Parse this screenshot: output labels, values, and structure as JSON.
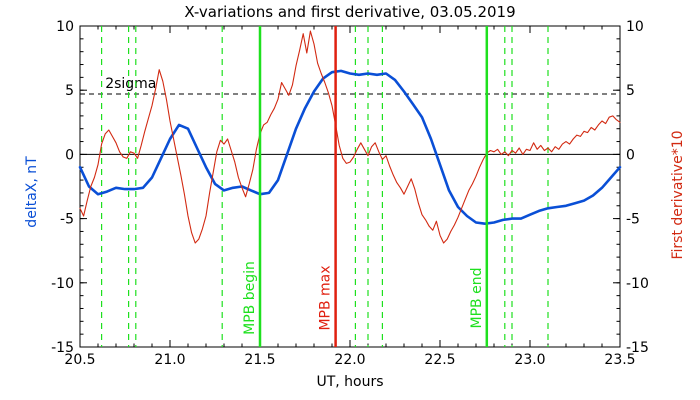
{
  "chart_data": {
    "type": "line",
    "title": "X-variations and first derivative, 03.05.2019",
    "xlabel": "UT, hours",
    "ylabel_left": "deltaX, nT",
    "ylabel_right": "First derivative*10",
    "xlim": [
      20.5,
      23.5
    ],
    "ylim": [
      -15,
      10
    ],
    "x_ticks": [
      "20.5",
      "21.0",
      "21.5",
      "22.0",
      "22.5",
      "23.0",
      "23.5"
    ],
    "y_ticks": [
      "10",
      "5",
      "0",
      "-5",
      "-10",
      "-15"
    ],
    "grid": false,
    "colors": {
      "deltaX": "#0a4fd6",
      "derivative": "#d22a12",
      "mpb": "#1ee01e",
      "mpb_max": "#e02010",
      "frame": "#000000"
    },
    "sigma_label": "2sigma",
    "sigma_level": 4.7,
    "zero_level": 0,
    "markers": [
      {
        "x": 21.5,
        "label": "MPB begin",
        "color": "#1ee01e"
      },
      {
        "x": 21.92,
        "label": "MPB max",
        "color": "#e02010"
      },
      {
        "x": 22.76,
        "label": "MPB end",
        "color": "#1ee01e"
      }
    ],
    "dashed_vlines": [
      20.62,
      20.77,
      20.81,
      21.29,
      22.03,
      22.1,
      22.18,
      22.86,
      22.9,
      23.1
    ],
    "series": [
      {
        "key": "deltaX",
        "axis": "left",
        "color": "#0a4fd6",
        "x": [
          20.5,
          20.55,
          20.6,
          20.65,
          20.7,
          20.75,
          20.8,
          20.85,
          20.9,
          20.95,
          21.0,
          21.05,
          21.1,
          21.15,
          21.2,
          21.25,
          21.3,
          21.35,
          21.4,
          21.45,
          21.5,
          21.55,
          21.6,
          21.65,
          21.7,
          21.75,
          21.8,
          21.85,
          21.9,
          21.95,
          22.0,
          22.05,
          22.1,
          22.15,
          22.2,
          22.25,
          22.3,
          22.35,
          22.4,
          22.45,
          22.5,
          22.55,
          22.6,
          22.65,
          22.7,
          22.75,
          22.8,
          22.85,
          22.9,
          22.95,
          23.0,
          23.05,
          23.1,
          23.15,
          23.2,
          23.25,
          23.3,
          23.35,
          23.4,
          23.45,
          23.5
        ],
        "y": [
          -1.0,
          -2.5,
          -3.1,
          -2.9,
          -2.6,
          -2.7,
          -2.7,
          -2.6,
          -1.8,
          -0.3,
          1.2,
          2.3,
          2.0,
          0.5,
          -1.0,
          -2.3,
          -2.8,
          -2.6,
          -2.5,
          -2.8,
          -3.1,
          -3.0,
          -2.0,
          0.0,
          2.0,
          3.6,
          4.9,
          5.9,
          6.4,
          6.5,
          6.3,
          6.2,
          6.3,
          6.2,
          6.3,
          5.8,
          4.9,
          3.9,
          2.9,
          1.2,
          -0.8,
          -2.8,
          -4.1,
          -4.8,
          -5.3,
          -5.4,
          -5.3,
          -5.1,
          -5.0,
          -5.0,
          -4.7,
          -4.4,
          -4.2,
          -4.1,
          -4.0,
          -3.8,
          -3.6,
          -3.2,
          -2.6,
          -1.8,
          -1.0
        ]
      },
      {
        "key": "derivative",
        "axis": "right",
        "color": "#d22a12",
        "x": [
          20.5,
          20.52,
          20.54,
          20.56,
          20.58,
          20.6,
          20.62,
          20.64,
          20.66,
          20.68,
          20.7,
          20.72,
          20.74,
          20.76,
          20.78,
          20.8,
          20.82,
          20.84,
          20.86,
          20.88,
          20.9,
          20.92,
          20.94,
          20.96,
          20.98,
          21.0,
          21.02,
          21.04,
          21.06,
          21.08,
          21.1,
          21.12,
          21.14,
          21.16,
          21.18,
          21.2,
          21.22,
          21.24,
          21.26,
          21.28,
          21.3,
          21.32,
          21.34,
          21.36,
          21.38,
          21.4,
          21.42,
          21.44,
          21.46,
          21.48,
          21.5,
          21.52,
          21.54,
          21.56,
          21.58,
          21.6,
          21.62,
          21.64,
          21.66,
          21.68,
          21.7,
          21.72,
          21.74,
          21.76,
          21.78,
          21.8,
          21.82,
          21.84,
          21.86,
          21.88,
          21.9,
          21.92,
          21.94,
          21.96,
          21.98,
          22.0,
          22.02,
          22.04,
          22.06,
          22.08,
          22.1,
          22.12,
          22.14,
          22.16,
          22.18,
          22.2,
          22.22,
          22.24,
          22.26,
          22.28,
          22.3,
          22.32,
          22.34,
          22.36,
          22.38,
          22.4,
          22.42,
          22.44,
          22.46,
          22.48,
          22.5,
          22.52,
          22.54,
          22.56,
          22.58,
          22.6,
          22.62,
          22.64,
          22.66,
          22.68,
          22.7,
          22.72,
          22.74,
          22.76,
          22.78,
          22.8,
          22.82,
          22.84,
          22.86,
          22.88,
          22.9,
          22.92,
          22.94,
          22.96,
          22.98,
          23.0,
          23.02,
          23.04,
          23.06,
          23.08,
          23.1,
          23.12,
          23.14,
          23.16,
          23.18,
          23.2,
          23.22,
          23.24,
          23.26,
          23.28,
          23.3,
          23.32,
          23.34,
          23.36,
          23.38,
          23.4,
          23.42,
          23.44,
          23.46,
          23.48,
          23.5
        ],
        "y": [
          -4.2,
          -4.8,
          -3.6,
          -2.5,
          -1.8,
          -0.8,
          0.8,
          1.6,
          1.9,
          1.4,
          0.9,
          0.2,
          -0.2,
          -0.3,
          0.2,
          0.1,
          -0.3,
          0.7,
          1.8,
          2.8,
          3.8,
          5.1,
          6.6,
          5.7,
          4.3,
          2.6,
          1.2,
          -0.2,
          -1.6,
          -3.1,
          -4.8,
          -6.1,
          -6.9,
          -6.6,
          -5.8,
          -4.8,
          -3.0,
          -1.4,
          0.2,
          1.1,
          0.8,
          1.2,
          0.3,
          -0.6,
          -1.8,
          -2.6,
          -3.3,
          -2.3,
          -1.2,
          0.4,
          1.6,
          2.3,
          2.5,
          3.1,
          3.6,
          4.3,
          5.6,
          5.1,
          4.6,
          5.4,
          6.9,
          8.1,
          9.4,
          7.9,
          9.6,
          8.6,
          7.1,
          6.3,
          5.6,
          4.8,
          3.8,
          2.3,
          0.7,
          -0.3,
          -0.7,
          -0.6,
          -0.2,
          0.4,
          0.9,
          0.4,
          -0.1,
          0.6,
          0.9,
          0.2,
          -0.4,
          -0.1,
          -0.9,
          -1.6,
          -2.2,
          -2.6,
          -3.1,
          -2.5,
          -1.9,
          -2.7,
          -3.8,
          -4.7,
          -5.1,
          -5.6,
          -5.9,
          -5.2,
          -6.3,
          -6.9,
          -6.6,
          -6.0,
          -5.5,
          -4.9,
          -4.2,
          -3.5,
          -2.8,
          -2.3,
          -1.7,
          -1.0,
          -0.4,
          0.1,
          0.3,
          0.2,
          0.4,
          0.0,
          0.2,
          -0.1,
          0.3,
          0.1,
          0.5,
          0.0,
          0.4,
          0.3,
          0.9,
          0.4,
          0.7,
          0.3,
          0.5,
          0.2,
          0.6,
          0.4,
          0.8,
          1.0,
          0.8,
          1.2,
          1.5,
          1.4,
          1.8,
          1.7,
          2.1,
          1.9,
          2.3,
          2.6,
          2.4,
          2.9,
          3.0,
          2.7,
          2.5
        ]
      }
    ]
  }
}
